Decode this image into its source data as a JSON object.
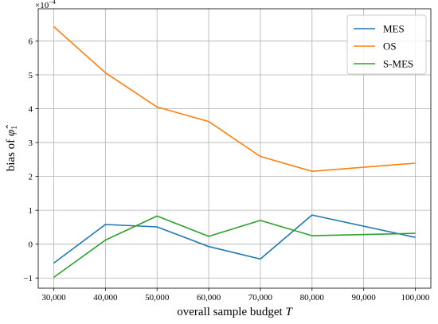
{
  "chart_data": {
    "type": "line",
    "xlabel": "overall sample budget",
    "xlabel_var": "T",
    "ylabel": "bias of",
    "ylabel_symbol": "φ̂",
    "ylabel_subscript": "1",
    "y_multiplier": "×10",
    "y_exponent": "−4",
    "x_tick_labels": [
      "30,000",
      "40,000",
      "50,000",
      "60,000",
      "70,000",
      "80,000",
      "90,000",
      "100,000"
    ],
    "y_tick_labels": [
      "−1",
      "0",
      "1",
      "2",
      "3",
      "4",
      "5",
      "6"
    ],
    "x_ticks": [
      30000,
      40000,
      50000,
      60000,
      70000,
      80000,
      90000,
      100000
    ],
    "y_ticks": [
      -1,
      0,
      1,
      2,
      3,
      4,
      5,
      6
    ],
    "xlim": [
      27000,
      103000
    ],
    "ylim": [
      -1.3,
      6.95
    ],
    "grid": true,
    "legend_position": "top-right",
    "x": [
      30000,
      40000,
      50000,
      60000,
      70000,
      80000,
      100000
    ],
    "series": [
      {
        "name": "MES",
        "color": "#1f77b4",
        "values": [
          -0.56,
          0.58,
          0.51,
          -0.07,
          -0.44,
          0.86,
          0.2
        ]
      },
      {
        "name": "OS",
        "color": "#ff7f0e",
        "values": [
          6.42,
          5.06,
          4.05,
          3.62,
          2.59,
          2.15,
          2.39
        ]
      },
      {
        "name": "S-MES",
        "color": "#2ca02c",
        "values": [
          -0.98,
          0.12,
          0.83,
          0.23,
          0.7,
          0.25,
          0.32
        ]
      }
    ]
  }
}
